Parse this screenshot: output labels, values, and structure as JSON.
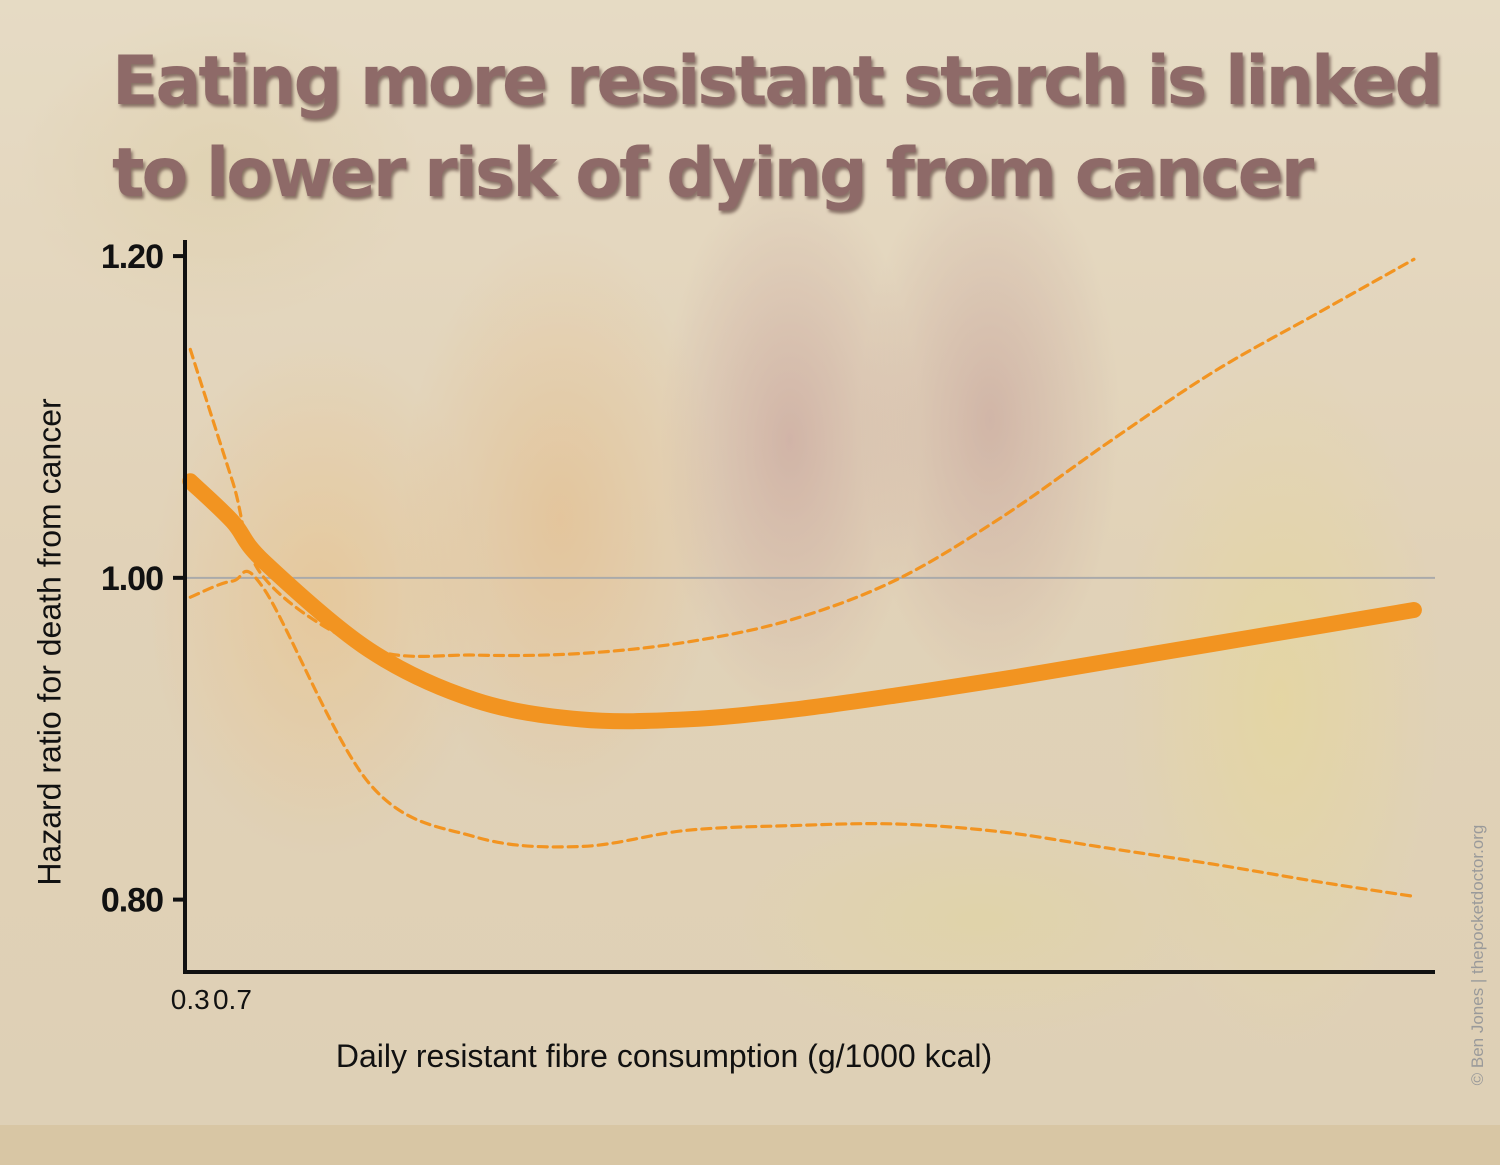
{
  "title": {
    "line1": "Eating more resistant starch is linked",
    "line2": "to lower risk of dying from cancer"
  },
  "credit": "© Ben Jones | thepocketdoctor.org",
  "colors": {
    "series": "#f29421",
    "title": "#8e6a68",
    "axis": "#111111",
    "reference_line": "#aaaaaa"
  },
  "chart_data": {
    "type": "line",
    "title": "Eating more resistant starch is linked to lower risk of dying from cancer",
    "xlabel": "Daily resistant fibre consumption (g/1000 kcal)",
    "ylabel": "Hazard ratio for death from cancer",
    "xlim": [
      0.25,
      12.1
    ],
    "ylim": [
      0.755,
      1.21
    ],
    "x_ticks": [
      {
        "value": 0.3,
        "label": "0.3"
      },
      {
        "value": 0.7,
        "label": "0.7"
      }
    ],
    "y_ticks": [
      {
        "value": 0.8,
        "label": "0.80"
      },
      {
        "value": 1.0,
        "label": "1.00"
      },
      {
        "value": 1.2,
        "label": "1.20"
      }
    ],
    "reference_line": {
      "y": 1.0
    },
    "grid": false,
    "series": [
      {
        "name": "Hazard ratio",
        "style": "solid",
        "x": [
          0.3,
          0.7,
          1.0,
          2.0,
          3.0,
          4.0,
          5.0,
          6.0,
          7.0,
          8.0,
          9.0,
          10.0,
          11.0,
          11.9
        ],
        "y": [
          1.06,
          1.035,
          1.01,
          0.955,
          0.924,
          0.912,
          0.912,
          0.918,
          0.927,
          0.937,
          0.948,
          0.959,
          0.97,
          0.98
        ]
      },
      {
        "name": "Upper 95% CI",
        "style": "dashed",
        "x": [
          0.3,
          0.7,
          1.0,
          2.0,
          3.0,
          4.0,
          5.0,
          6.0,
          7.0,
          8.0,
          9.0,
          10.0,
          11.0,
          11.9
        ],
        "y": [
          1.142,
          1.06,
          1.0,
          0.956,
          0.952,
          0.953,
          0.96,
          0.974,
          0.999,
          1.038,
          1.084,
          1.128,
          1.165,
          1.198
        ]
      },
      {
        "name": "Lower 95% CI",
        "style": "dashed",
        "x": [
          0.3,
          0.7,
          1.0,
          2.0,
          3.0,
          4.0,
          5.0,
          6.0,
          7.0,
          8.0,
          9.0,
          10.0,
          11.0,
          11.9
        ],
        "y": [
          0.988,
          0.998,
          0.993,
          0.872,
          0.839,
          0.833,
          0.843,
          0.846,
          0.847,
          0.842,
          0.832,
          0.822,
          0.811,
          0.802
        ]
      }
    ]
  }
}
